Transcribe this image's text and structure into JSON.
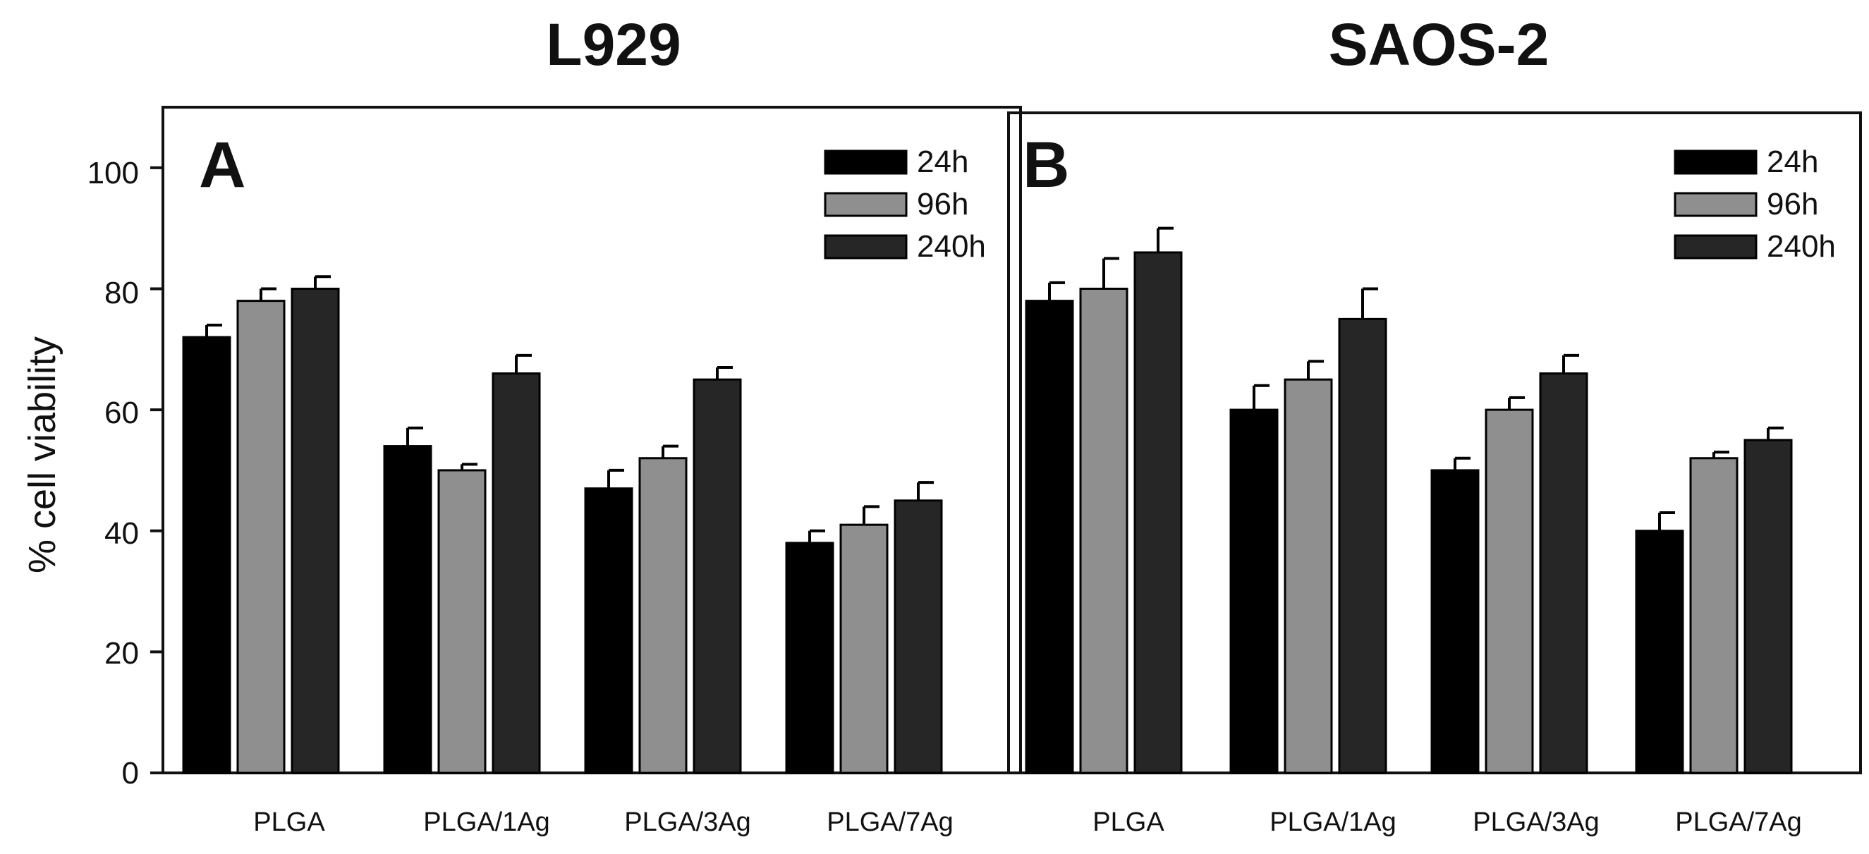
{
  "chart_data": [
    {
      "type": "bar",
      "title": "L929",
      "panel": "A",
      "ylabel": "% cell viability",
      "xlabel": "",
      "ylim": [
        0,
        110
      ],
      "yticks": [
        "0",
        "20",
        "40",
        "60",
        "80",
        "100"
      ],
      "categories": [
        "PLGA",
        "PLGA/1Ag",
        "PLGA/3Ag",
        "PLGA/7Ag"
      ],
      "legend_position": "top-right",
      "series": [
        {
          "name": "24h",
          "color": "#000000",
          "values": [
            72,
            54,
            47,
            38
          ],
          "errors": [
            2,
            3,
            3,
            2
          ]
        },
        {
          "name": "96h",
          "color": "#8f8f8f",
          "values": [
            78,
            50,
            52,
            41
          ],
          "errors": [
            2,
            1,
            2,
            3
          ]
        },
        {
          "name": "240h",
          "color": "#262626",
          "values": [
            80,
            66,
            65,
            45
          ],
          "errors": [
            2,
            3,
            2,
            3
          ]
        }
      ]
    },
    {
      "type": "bar",
      "title": "SAOS-2",
      "panel": "B",
      "ylabel": "",
      "xlabel": "",
      "ylim": [
        0,
        110
      ],
      "categories": [
        "PLGA",
        "PLGA/1Ag",
        "PLGA/3Ag",
        "PLGA/7Ag"
      ],
      "legend_position": "top-right",
      "series": [
        {
          "name": "24h",
          "color": "#000000",
          "values": [
            78,
            60,
            50,
            40
          ],
          "errors": [
            3,
            4,
            2,
            3
          ]
        },
        {
          "name": "96h",
          "color": "#8f8f8f",
          "values": [
            80,
            65,
            60,
            52
          ],
          "errors": [
            5,
            3,
            2,
            1
          ]
        },
        {
          "name": "240h",
          "color": "#262626",
          "values": [
            86,
            75,
            66,
            55
          ],
          "errors": [
            4,
            5,
            3,
            2
          ]
        }
      ]
    }
  ]
}
